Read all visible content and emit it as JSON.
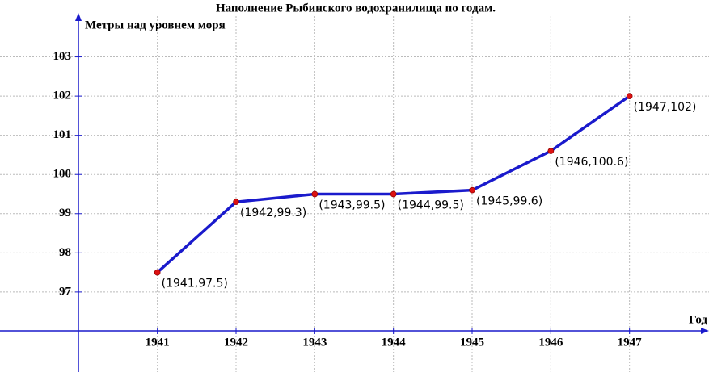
{
  "chart_data": {
    "type": "line",
    "title": "Наполнение Рыбинского водохранилища по годам.",
    "x_label": "Год",
    "y_label": "Метры над уровнем моря",
    "x": [
      1941,
      1942,
      1943,
      1944,
      1945,
      1946,
      1947
    ],
    "series": [
      {
        "color": "#1a1acc",
        "marker_color": "#dd1111",
        "values": [
          97.5,
          99.3,
          99.5,
          99.5,
          99.6,
          100.6,
          102
        ],
        "value_labels": [
          "(1941,97.5)",
          "(1942,99.3)",
          "(1943,99.5)",
          "(1944,99.5)",
          "(1945,99.6)",
          "(1946,100.6)",
          "(1947,102)"
        ]
      }
    ],
    "xlim": [
      1939,
      1948
    ],
    "ylim": [
      95,
      104
    ],
    "xticks": [
      1941,
      1942,
      1943,
      1944,
      1945,
      1946,
      1947
    ],
    "yticks": [
      97,
      98,
      99,
      100,
      101,
      102,
      103
    ],
    "grid": true
  }
}
